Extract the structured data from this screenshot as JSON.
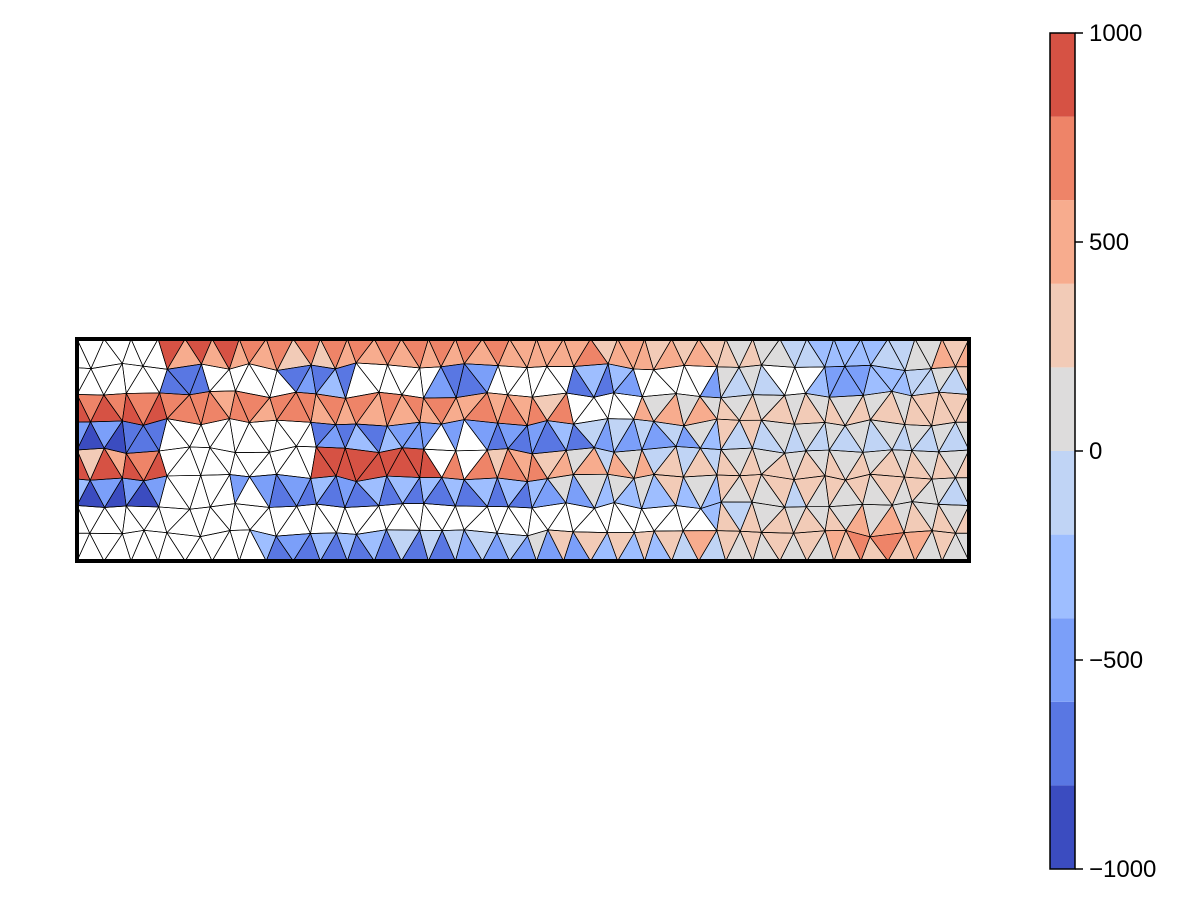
{
  "chart_data": {
    "type": "heatmap",
    "subtype": "filled-contour-on-triangular-mesh",
    "title": "",
    "xlabel": "",
    "ylabel": "",
    "axes_visible": false,
    "colormap": "coolwarm",
    "colorbar": {
      "placement": "right",
      "range": [
        -1000,
        1000
      ],
      "levels": [
        -1000,
        -800,
        -600,
        -400,
        -200,
        0,
        200,
        400,
        600,
        800,
        1000
      ],
      "level_colors": [
        "#3b4cc0",
        "#5977e3",
        "#7b9ff9",
        "#9ebeff",
        "#c0d4f5",
        "#dddcdc",
        "#f2cbb7",
        "#f7ac8e",
        "#ee8468",
        "#d65244",
        "#b40426"
      ],
      "ticks": [
        1000,
        500,
        0,
        -500,
        -1000
      ],
      "tick_labels": [
        "1000",
        "500",
        "0",
        "−500",
        "−1000"
      ]
    },
    "mesh": {
      "domain_aspect_width_to_height": 4.0,
      "element_type": "triangle",
      "color": "#000000"
    },
    "field_description": "Alternating horizontal bands of strong negative (blue) and positive (red) values with several voids (uncolored gaps); mostly near-zero to mildly positive region in the right half; concentrated high values near the left-center and lower-right."
  }
}
